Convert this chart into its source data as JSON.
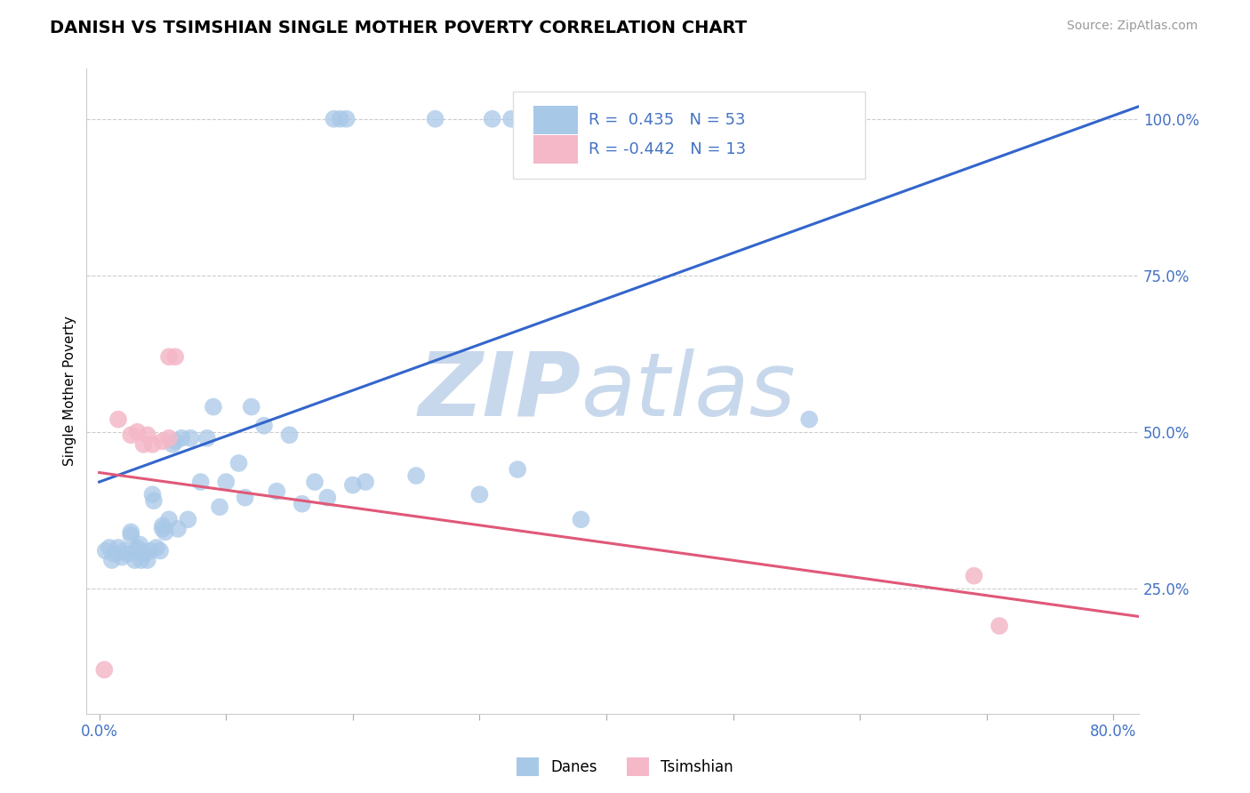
{
  "title": "DANISH VS TSIMSHIAN SINGLE MOTHER POVERTY CORRELATION CHART",
  "source_text": "Source: ZipAtlas.com",
  "ylabel": "Single Mother Poverty",
  "xlim": [
    -0.01,
    0.82
  ],
  "ylim": [
    0.05,
    1.08
  ],
  "ytick_positions": [
    0.25,
    0.5,
    0.75,
    1.0
  ],
  "ytick_labels": [
    "25.0%",
    "50.0%",
    "75.0%",
    "100.0%"
  ],
  "blue_R": 0.435,
  "blue_N": 53,
  "pink_R": -0.442,
  "pink_N": 13,
  "blue_color": "#A8C8E8",
  "pink_color": "#F4B8C8",
  "blue_line_color": "#3366CC",
  "pink_line_color": "#E05878",
  "watermark_zip": "ZIP",
  "watermark_atlas": "atlas",
  "watermark_color_zip": "#C8D8EC",
  "watermark_color_atlas": "#C8D8EC",
  "legend_blue_label": "Danes",
  "legend_pink_label": "Tsimshian",
  "danes_x": [
    0.005,
    0.008,
    0.01,
    0.012,
    0.015,
    0.018,
    0.02,
    0.022,
    0.025,
    0.025,
    0.028,
    0.03,
    0.03,
    0.032,
    0.033,
    0.035,
    0.038,
    0.04,
    0.042,
    0.043,
    0.045,
    0.048,
    0.05,
    0.05,
    0.052,
    0.055,
    0.058,
    0.06,
    0.062,
    0.065,
    0.07,
    0.072,
    0.08,
    0.085,
    0.09,
    0.095,
    0.1,
    0.11,
    0.115,
    0.12,
    0.13,
    0.14,
    0.15,
    0.16,
    0.17,
    0.18,
    0.2,
    0.21,
    0.25,
    0.3,
    0.33,
    0.38,
    0.56
  ],
  "danes_y": [
    0.31,
    0.315,
    0.295,
    0.305,
    0.315,
    0.3,
    0.31,
    0.305,
    0.335,
    0.34,
    0.295,
    0.31,
    0.315,
    0.32,
    0.295,
    0.305,
    0.295,
    0.31,
    0.4,
    0.39,
    0.315,
    0.31,
    0.345,
    0.35,
    0.34,
    0.36,
    0.48,
    0.485,
    0.345,
    0.49,
    0.36,
    0.49,
    0.42,
    0.49,
    0.54,
    0.38,
    0.42,
    0.45,
    0.395,
    0.54,
    0.51,
    0.405,
    0.495,
    0.385,
    0.42,
    0.395,
    0.415,
    0.42,
    0.43,
    0.4,
    0.44,
    0.36,
    0.52
  ],
  "danes_top_x": [
    0.185,
    0.19,
    0.195,
    0.265,
    0.31,
    0.325,
    0.335,
    0.34
  ],
  "danes_top_y": [
    1.0,
    1.0,
    1.0,
    1.0,
    1.0,
    1.0,
    1.0,
    1.0
  ],
  "tsimshian_x": [
    0.004,
    0.015,
    0.025,
    0.03,
    0.035,
    0.038,
    0.042,
    0.05,
    0.055,
    0.06,
    0.69,
    0.71,
    0.055
  ],
  "tsimshian_y": [
    0.12,
    0.52,
    0.495,
    0.5,
    0.48,
    0.495,
    0.48,
    0.485,
    0.49,
    0.62,
    0.27,
    0.19,
    0.62
  ],
  "blue_trendline_x": [
    0.0,
    0.82
  ],
  "blue_trendline_y": [
    0.42,
    1.02
  ],
  "pink_trendline_x": [
    0.0,
    0.82
  ],
  "pink_trendline_y": [
    0.435,
    0.205
  ]
}
